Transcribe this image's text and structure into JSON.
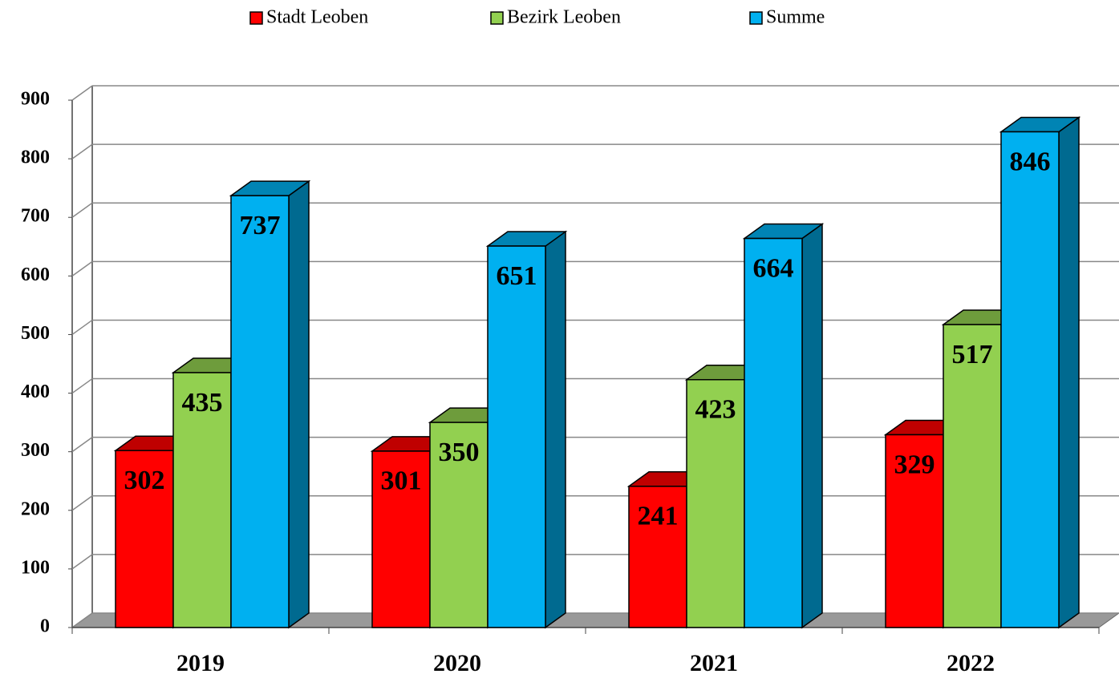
{
  "chart_data": {
    "type": "bar3d",
    "categories": [
      "2019",
      "2020",
      "2021",
      "2022"
    ],
    "series": [
      {
        "name": "Stadt Leoben",
        "color": "#ff0000",
        "values": [
          302,
          301,
          241,
          329
        ]
      },
      {
        "name": "Bezirk Leoben",
        "color": "#92d050",
        "values": [
          435,
          350,
          423,
          517
        ]
      },
      {
        "name": "Summe",
        "color": "#00b0f0",
        "values": [
          737,
          651,
          664,
          846
        ]
      }
    ],
    "ylim": [
      0,
      900
    ],
    "yticks": [
      0,
      100,
      200,
      300,
      400,
      500,
      600,
      700,
      800,
      900
    ],
    "grid": true,
    "legend": "top"
  }
}
